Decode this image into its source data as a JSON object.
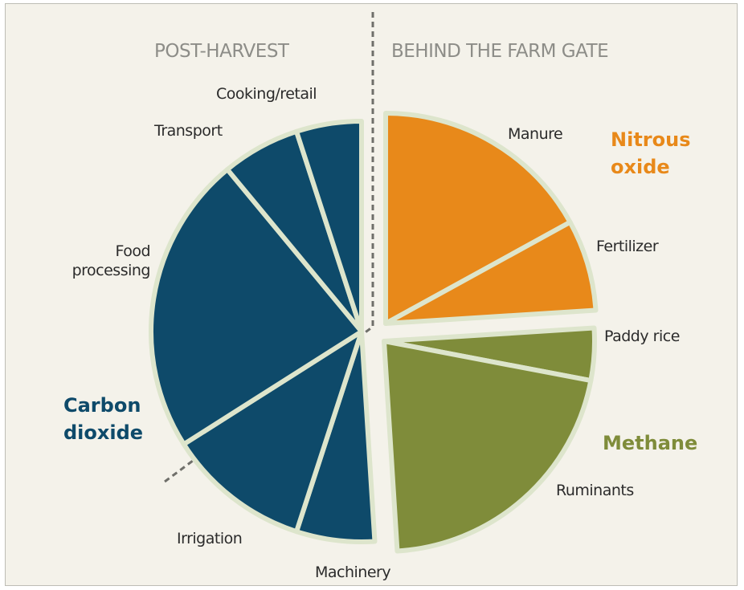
{
  "chart_data": {
    "type": "pie",
    "sections": [
      "POST-HARVEST",
      "BEHIND THE FARM GATE"
    ],
    "categories": [
      "Manure",
      "Fertilizer",
      "Paddy rice",
      "Ruminants",
      "Machinery",
      "Irrigation",
      "Food processing",
      "Transport",
      "Cooking/retail"
    ],
    "values": [
      17,
      7,
      4,
      21,
      6,
      11,
      23,
      6,
      5
    ],
    "groups": [
      {
        "name": "Nitrous oxide",
        "color": "#e8891a",
        "members": [
          0,
          1
        ]
      },
      {
        "name": "Methane",
        "color": "#7f8c3a",
        "members": [
          2,
          3
        ]
      },
      {
        "name": "Carbon dioxide",
        "color": "#0e4a6a",
        "members": [
          4,
          5,
          6,
          7,
          8
        ]
      }
    ]
  }
}
